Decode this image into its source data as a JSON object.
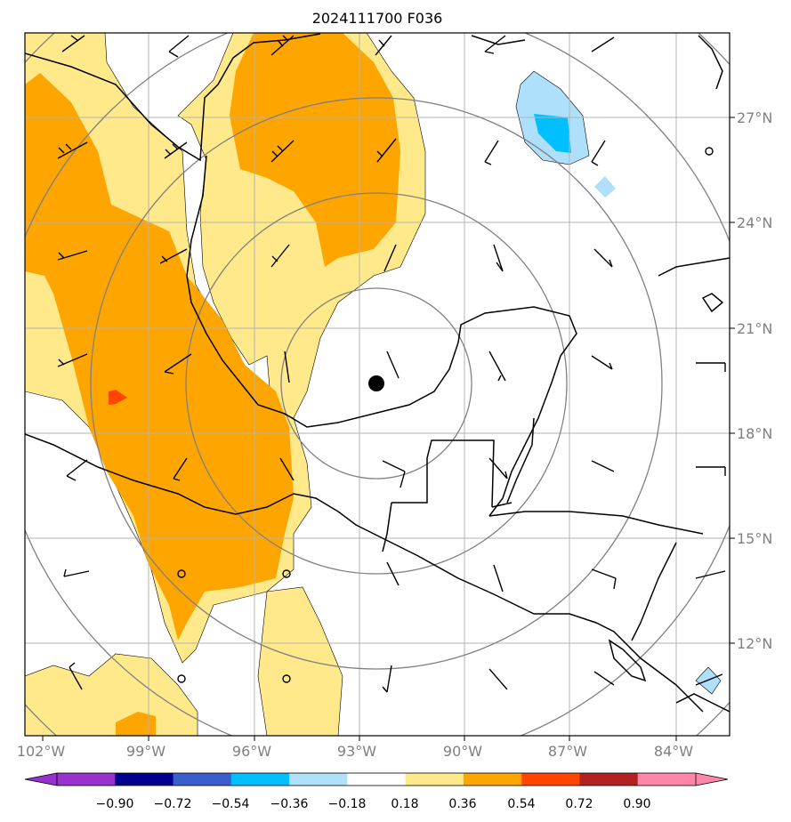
{
  "title": "2024111700 F036",
  "map": {
    "lon_ticks": [
      "102°W",
      "99°W",
      "96°W",
      "93°W",
      "90°W",
      "87°W",
      "84°W"
    ],
    "lat_ticks": [
      "27°N",
      "24°N",
      "21°N",
      "18°N",
      "15°N",
      "12°N"
    ],
    "extent": {
      "lon_min": -102.0,
      "lon_max": -82.0,
      "lat_min": 10.0,
      "lat_max": 29.5
    },
    "center_marker": {
      "lon": -92.4,
      "lat": 19.3
    },
    "range_rings_count": 5,
    "fill_colors": {
      "light_yellow": "#ffe98a",
      "orange": "#ffa500",
      "red_orange": "#ff4500",
      "light_blue": "#aee0fb",
      "cyan": "#00bfff"
    }
  },
  "colorbar": {
    "labels": [
      "−0.90",
      "−0.72",
      "−0.54",
      "−0.36",
      "−0.18",
      "0.18",
      "0.36",
      "0.54",
      "0.72",
      "0.90"
    ],
    "colors": [
      "#9932cc",
      "#000090",
      "#3a5fcd",
      "#00bfff",
      "#b0e0fa",
      "#ffffff",
      "#ffe98a",
      "#ffa500",
      "#ff4500",
      "#b22222",
      "#ff88aa",
      "#ff88aa"
    ],
    "extend_low_color": "#9932cc",
    "extend_high_color": "#ff88aa"
  }
}
